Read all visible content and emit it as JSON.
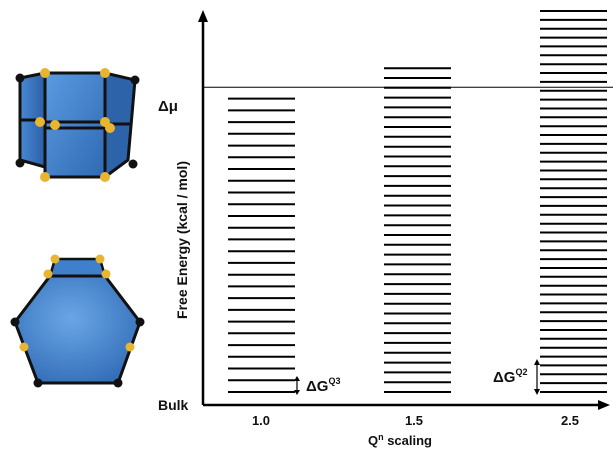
{
  "chart_data": {
    "type": "bar",
    "title": "",
    "xlabel": "Q",
    "xlabel_sup": "n",
    "xlabel_suffix": " scaling",
    "ylabel": "Free Energy (kcal / mol)",
    "categories": [
      "1.0",
      "1.5",
      "2.5"
    ],
    "levels": [
      {
        "category": "1.0",
        "count": 26,
        "top": 0.77
      },
      {
        "category": "1.5",
        "count": 34,
        "top": 0.85
      },
      {
        "category": "2.5",
        "count": 44,
        "top": 1.0
      }
    ],
    "reference_lines": [
      {
        "name": "Δμ",
        "value": 0.8
      },
      {
        "name": "Bulk",
        "value": 0
      }
    ],
    "annotations": [
      {
        "category": "1.0",
        "text": "ΔG",
        "sup": "Q3"
      },
      {
        "category": "2.5",
        "text": "ΔG",
        "sup": "Q2"
      }
    ],
    "ylim": [
      0,
      1.0
    ],
    "colors": {
      "line": "#000000",
      "crystal_face": "#3d7dc9",
      "crystal_atom_gold": "#e8b530",
      "crystal_atom_black": "#111111"
    }
  },
  "illustrations": [
    {
      "name": "crystal-top",
      "description_icon": "crystal-prism-icon"
    },
    {
      "name": "crystal-bottom",
      "description_icon": "crystal-hexagon-icon"
    }
  ]
}
